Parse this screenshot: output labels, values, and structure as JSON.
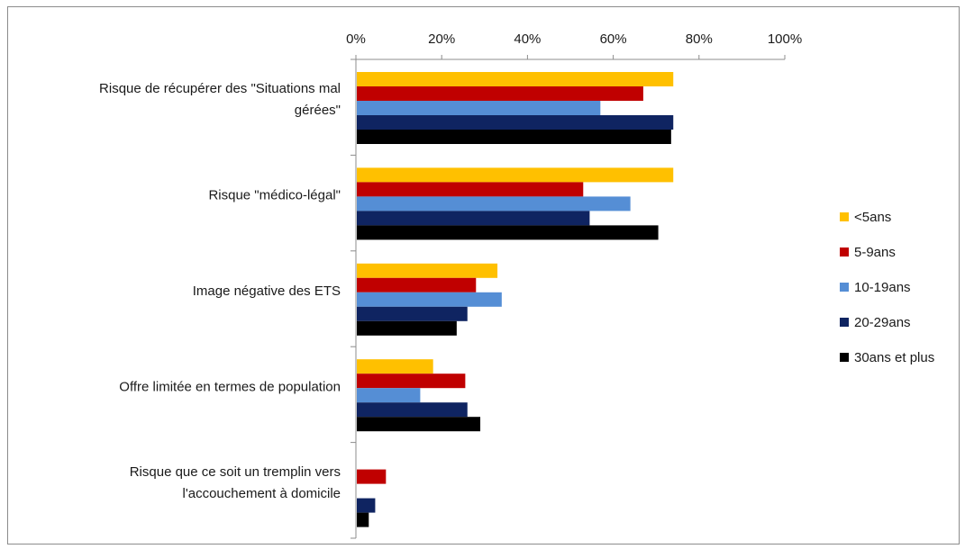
{
  "chart_data": {
    "type": "bar",
    "orientation": "horizontal",
    "x_ticks": [
      "0%",
      "20%",
      "40%",
      "60%",
      "80%",
      "100%"
    ],
    "xlim": [
      0,
      100
    ],
    "x_axis_position": "top",
    "grid": false,
    "legend_position": "right",
    "categories": [
      [
        "Risque de récupérer des \"Situations mal",
        "gérées\""
      ],
      [
        "Risque \"médico-légal\""
      ],
      [
        "Image négative des ETS"
      ],
      [
        "Offre limitée en termes de population"
      ],
      [
        "Risque que ce soit un tremplin vers",
        "l'accouchement à domicile"
      ]
    ],
    "series": [
      {
        "name": "<5ans",
        "color": "#FFC000",
        "values": [
          74,
          74,
          33,
          18,
          0
        ]
      },
      {
        "name": "5-9ans",
        "color": "#C00000",
        "values": [
          67,
          53,
          28,
          25.5,
          7
        ]
      },
      {
        "name": "10-19ans",
        "color": "#558ED5",
        "values": [
          57,
          64,
          34,
          15,
          0
        ]
      },
      {
        "name": "20-29ans",
        "color": "#0F2461",
        "values": [
          74,
          54.5,
          26,
          26,
          4.5
        ]
      },
      {
        "name": "30ans et plus",
        "color": "#000000",
        "values": [
          73.5,
          70.5,
          23.5,
          29,
          3
        ]
      }
    ]
  }
}
